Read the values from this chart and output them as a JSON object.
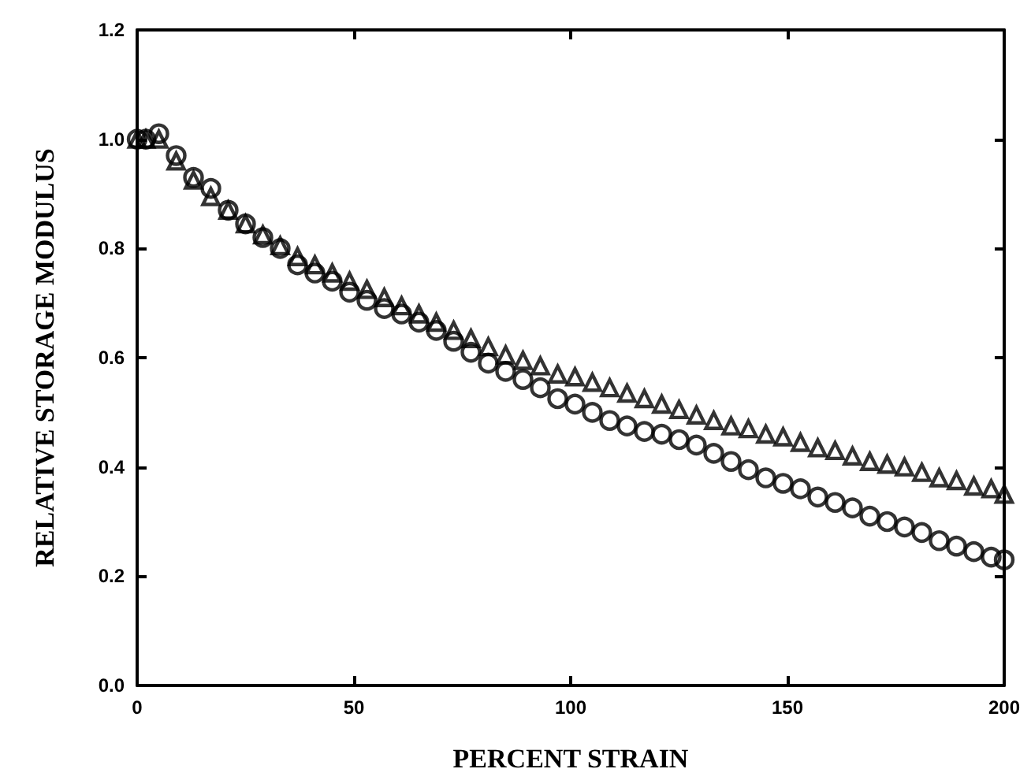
{
  "chart_data": {
    "type": "scatter",
    "xlabel": "PERCENT STRAIN",
    "ylabel": "RELATIVE STORAGE MODULUS",
    "xlim": [
      0,
      200
    ],
    "xticks": [
      0,
      50,
      100,
      150,
      200
    ],
    "ylim": [
      0,
      1.2
    ],
    "yticks": [
      {
        "value": 0,
        "label": "0.0"
      },
      {
        "value": 0.2,
        "label": "0.2"
      },
      {
        "value": 0.4,
        "label": "0.4"
      },
      {
        "value": 0.6,
        "label": "0.6"
      },
      {
        "value": 0.8,
        "label": "0.8"
      },
      {
        "value": 1.0,
        "label": "1.0"
      },
      {
        "value": 1.2,
        "label": "1.2"
      }
    ],
    "grid": false,
    "series": [
      {
        "color": "#000000",
        "marker": "circle",
        "x": [
          0,
          2,
          5,
          9,
          13,
          17,
          21,
          25,
          29,
          33,
          37,
          41,
          45,
          49,
          53,
          57,
          61,
          65,
          69,
          73,
          77,
          81,
          85,
          89,
          93,
          97,
          101,
          105,
          109,
          113,
          117,
          121,
          125,
          129,
          133,
          137,
          141,
          145,
          149,
          153,
          157,
          161,
          165,
          169,
          173,
          177,
          181,
          185,
          189,
          193,
          197,
          200
        ],
        "values": [
          1.0,
          1.0,
          1.01,
          0.97,
          0.93,
          0.91,
          0.87,
          0.845,
          0.82,
          0.8,
          0.77,
          0.755,
          0.74,
          0.72,
          0.705,
          0.69,
          0.68,
          0.665,
          0.65,
          0.63,
          0.61,
          0.59,
          0.575,
          0.56,
          0.545,
          0.525,
          0.515,
          0.5,
          0.485,
          0.475,
          0.465,
          0.46,
          0.45,
          0.44,
          0.425,
          0.41,
          0.395,
          0.38,
          0.37,
          0.36,
          0.345,
          0.335,
          0.325,
          0.31,
          0.3,
          0.29,
          0.28,
          0.265,
          0.255,
          0.245,
          0.235,
          0.23
        ]
      },
      {
        "color": "#000000",
        "marker": "triangle",
        "x": [
          0,
          2,
          5,
          9,
          13,
          17,
          21,
          25,
          29,
          33,
          37,
          41,
          45,
          49,
          53,
          57,
          61,
          65,
          69,
          73,
          77,
          81,
          85,
          89,
          93,
          97,
          101,
          105,
          109,
          113,
          117,
          121,
          125,
          129,
          133,
          137,
          141,
          145,
          149,
          153,
          157,
          161,
          165,
          169,
          173,
          177,
          181,
          185,
          189,
          193,
          197,
          200
        ],
        "values": [
          1.0,
          1.0,
          1.0,
          0.96,
          0.925,
          0.895,
          0.87,
          0.845,
          0.825,
          0.805,
          0.785,
          0.77,
          0.755,
          0.74,
          0.725,
          0.71,
          0.695,
          0.68,
          0.665,
          0.65,
          0.635,
          0.62,
          0.605,
          0.595,
          0.585,
          0.57,
          0.565,
          0.555,
          0.545,
          0.535,
          0.525,
          0.515,
          0.505,
          0.495,
          0.485,
          0.475,
          0.47,
          0.46,
          0.455,
          0.445,
          0.435,
          0.43,
          0.42,
          0.41,
          0.405,
          0.4,
          0.39,
          0.38,
          0.375,
          0.365,
          0.36,
          0.35
        ]
      }
    ]
  }
}
